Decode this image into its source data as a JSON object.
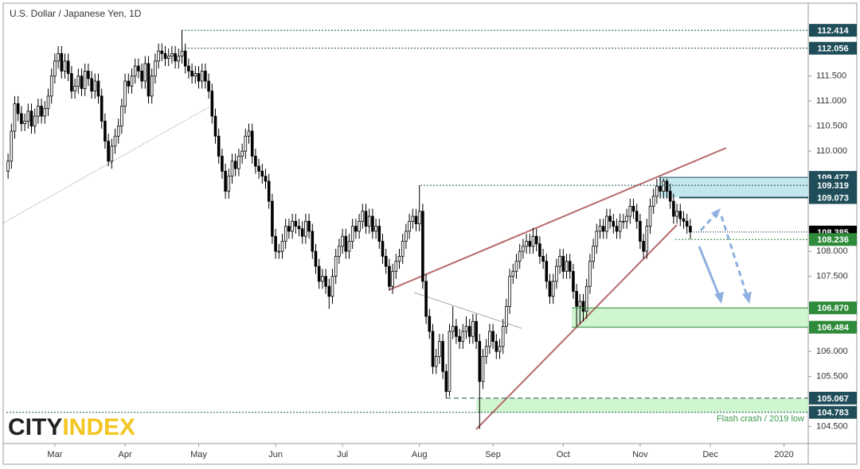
{
  "chart_data": {
    "type": "candlestick",
    "title": "U.S. Dollar / Japanese Yen, 1D",
    "categories": [
      null,
      null,
      null,
      null,
      null,
      null,
      null,
      null,
      null,
      null,
      null,
      null,
      null,
      null,
      "Mar",
      null,
      null,
      null,
      null,
      null,
      null,
      null,
      null,
      null,
      null,
      null,
      null,
      null,
      null,
      null,
      null,
      null,
      null,
      null,
      null,
      "Apr",
      null,
      null,
      null,
      null,
      null,
      null,
      null,
      null,
      null,
      null,
      null,
      null,
      null,
      null,
      null,
      null,
      null,
      null,
      null,
      null,
      null,
      "May",
      null,
      null,
      null,
      null,
      null,
      null,
      null,
      null,
      null,
      null,
      null,
      null,
      null,
      null,
      null,
      null,
      null,
      null,
      null,
      null,
      null,
      null,
      "Jun",
      null,
      null,
      null,
      null,
      null,
      null,
      null,
      null,
      null,
      null,
      null,
      null,
      null,
      null,
      null,
      null,
      null,
      null,
      null,
      "Jul",
      null,
      null,
      null,
      null,
      null,
      null,
      null,
      null,
      null,
      null,
      null,
      null,
      null,
      null,
      null,
      null,
      null,
      null,
      null,
      null,
      null,
      null,
      "Aug",
      null,
      null,
      null,
      null,
      null,
      null,
      null,
      null,
      null,
      null,
      null,
      null,
      null,
      null,
      null,
      null,
      null,
      null,
      null,
      null,
      null,
      "Sep",
      null,
      null,
      null,
      null,
      null,
      null,
      null,
      null,
      null,
      null,
      null,
      null,
      null,
      null,
      null,
      null,
      null,
      null,
      null,
      null,
      "Oct",
      null,
      null,
      null,
      null,
      null,
      null,
      null,
      null,
      null,
      null,
      null,
      null,
      null,
      null,
      null,
      null,
      null,
      null,
      null,
      null,
      null,
      null,
      "Nov",
      null,
      null,
      null,
      null,
      null,
      null,
      null,
      null,
      null,
      null,
      null,
      null,
      null,
      null,
      null,
      null,
      null,
      null,
      null,
      null,
      "Dec",
      null,
      null,
      null,
      null,
      null,
      null,
      null,
      null,
      null,
      null,
      null,
      null,
      null,
      null,
      null,
      null,
      null,
      null,
      null,
      null,
      null,
      "2020",
      null,
      null,
      null,
      null,
      null,
      null,
      null
    ],
    "open": [
      109.6,
      109.8,
      110.4,
      110.95,
      110.75,
      110.55,
      110.6,
      110.8,
      110.5,
      110.7,
      110.9,
      110.7,
      110.85,
      111.1,
      111.5,
      111.8,
      111.95,
      111.6,
      111.8,
      111.55,
      111.2,
      111.3,
      111.5,
      111.25,
      111.6,
      111.45,
      111.2,
      111.4,
      111.1,
      110.6,
      110.2,
      109.8,
      110.1,
      110.3,
      110.5,
      110.9,
      111.4,
      111.3,
      111.5,
      111.7,
      111.6,
      111.4,
      111.75,
      111.1,
      111.5,
      111.8,
      112.0,
      111.95,
      111.85,
      111.9,
      111.95,
      111.8,
      111.9,
      112.0,
      111.7,
      111.6,
      111.5,
      111.55,
      111.4,
      111.6,
      111.4,
      111.2,
      110.7,
      110.3,
      109.9,
      109.6,
      109.2,
      109.5,
      109.8,
      109.65,
      109.9,
      110.0,
      110.3,
      110.4,
      109.9,
      109.7,
      109.6,
      109.5,
      109.4,
      109.0,
      108.3,
      108.0,
      108.0,
      108.2,
      108.5,
      108.4,
      108.6,
      108.5,
      108.45,
      108.3,
      108.6,
      108.4,
      108.0,
      107.7,
      107.4,
      107.5,
      107.3,
      107.1,
      107.5,
      107.9,
      108.1,
      108.3,
      108.0,
      108.2,
      108.5,
      108.4,
      108.6,
      108.8,
      108.5,
      108.7,
      108.4,
      108.5,
      108.2,
      107.9,
      107.7,
      107.3,
      107.6,
      107.8,
      107.9,
      108.2,
      108.4,
      108.6,
      108.7,
      108.55,
      108.8,
      107.4,
      106.7,
      106.4,
      105.7,
      105.9,
      106.2,
      105.6,
      105.2,
      106.4,
      106.5,
      106.3,
      106.2,
      106.4,
      106.5,
      106.3,
      106.6,
      106.2,
      105.4,
      105.9,
      106.1,
      106.4,
      106.2,
      106.0,
      106.1,
      106.5,
      106.9,
      107.5,
      107.6,
      107.8,
      108.0,
      108.1,
      108.2,
      108.1,
      108.3,
      108.15,
      107.9,
      107.8,
      107.4,
      107.1,
      107.4,
      107.7,
      107.9,
      107.6,
      107.8,
      107.6,
      107.2,
      106.9,
      107.0,
      106.8,
      107.3,
      107.8,
      108.1,
      108.4,
      108.5,
      108.4,
      108.7,
      108.6,
      108.5,
      108.4,
      108.6,
      108.6,
      108.7,
      108.9,
      108.8,
      108.6,
      108.2,
      108.0,
      108.5,
      108.9,
      109.1,
      109.3,
      109.2,
      109.4,
      109.2,
      109.0,
      108.7,
      108.8,
      108.65,
      108.6,
      108.5,
      null,
      null,
      null,
      null,
      null,
      null,
      null,
      null,
      null,
      null,
      null,
      null,
      null,
      null,
      null,
      null,
      null,
      null,
      null,
      null,
      null,
      null,
      null,
      null,
      null,
      null,
      null,
      null,
      null,
      null,
      null,
      null,
      null,
      null,
      null
    ],
    "high": [
      109.95,
      110.55,
      111.1,
      111.1,
      110.9,
      110.75,
      110.95,
      110.95,
      110.85,
      111.05,
      111.05,
      111.0,
      111.25,
      111.65,
      111.95,
      112.1,
      112.1,
      111.95,
      111.95,
      111.7,
      111.45,
      111.65,
      111.65,
      111.75,
      111.75,
      111.6,
      111.55,
      111.55,
      111.25,
      110.75,
      110.35,
      110.25,
      110.45,
      110.65,
      111.05,
      111.55,
      111.55,
      111.65,
      111.85,
      111.85,
      111.75,
      111.9,
      111.9,
      111.65,
      111.95,
      112.15,
      112.15,
      112.1,
      112.05,
      112.1,
      112.1,
      112.05,
      112.41,
      112.15,
      111.85,
      111.75,
      111.7,
      111.7,
      111.75,
      111.75,
      111.55,
      111.35,
      110.85,
      110.45,
      110.05,
      109.75,
      109.65,
      109.95,
      109.95,
      110.05,
      110.15,
      110.45,
      110.55,
      110.55,
      110.05,
      109.85,
      109.75,
      109.65,
      109.55,
      109.15,
      108.45,
      108.15,
      108.35,
      108.65,
      108.65,
      108.75,
      108.75,
      108.65,
      108.6,
      108.75,
      108.75,
      108.55,
      108.15,
      107.85,
      107.65,
      107.65,
      107.45,
      107.65,
      108.05,
      108.25,
      108.45,
      108.45,
      108.35,
      108.65,
      108.65,
      108.75,
      108.95,
      108.95,
      108.85,
      108.85,
      108.65,
      108.65,
      108.35,
      108.05,
      107.85,
      107.75,
      107.95,
      108.05,
      108.35,
      108.55,
      108.75,
      108.85,
      108.85,
      109.32,
      108.95,
      107.55,
      106.85,
      106.55,
      106.05,
      106.35,
      106.35,
      105.75,
      106.55,
      106.9,
      106.65,
      106.45,
      106.55,
      106.7,
      106.65,
      106.75,
      106.75,
      106.35,
      106.05,
      106.25,
      106.55,
      106.55,
      106.35,
      106.25,
      106.65,
      107.05,
      107.65,
      107.75,
      107.95,
      108.15,
      108.25,
      108.35,
      108.35,
      108.47,
      108.45,
      108.3,
      108.05,
      107.95,
      107.55,
      107.55,
      107.85,
      108.05,
      108.05,
      107.95,
      107.95,
      107.75,
      107.35,
      107.15,
      107.15,
      107.45,
      107.95,
      108.25,
      108.55,
      108.65,
      108.65,
      108.85,
      108.85,
      108.75,
      108.65,
      108.75,
      108.75,
      108.85,
      109.05,
      109.05,
      108.95,
      108.75,
      108.35,
      108.65,
      109.05,
      109.25,
      109.45,
      109.48,
      109.45,
      109.45,
      109.35,
      109.15,
      108.95,
      108.95,
      108.8,
      108.75,
      108.65,
      null,
      null,
      null,
      null,
      null,
      null,
      null,
      null,
      null,
      null,
      null,
      null,
      null,
      null,
      null,
      null,
      null,
      null,
      null,
      null,
      null,
      null,
      null,
      null,
      null,
      null,
      null,
      null,
      null,
      null,
      null,
      null,
      null,
      null,
      null
    ],
    "low": [
      109.45,
      109.65,
      110.25,
      110.6,
      110.4,
      110.4,
      110.45,
      110.35,
      110.35,
      110.55,
      110.55,
      110.55,
      110.7,
      110.95,
      111.35,
      111.65,
      111.45,
      111.45,
      111.4,
      111.05,
      111.05,
      111.15,
      111.1,
      111.1,
      111.3,
      111.05,
      111.05,
      110.95,
      110.45,
      110.05,
      109.7,
      109.65,
      109.95,
      110.15,
      110.35,
      110.75,
      111.15,
      111.15,
      111.35,
      111.45,
      111.25,
      111.25,
      110.95,
      110.95,
      111.35,
      111.65,
      111.8,
      111.7,
      111.7,
      111.75,
      111.65,
      111.65,
      111.75,
      111.55,
      111.45,
      111.35,
      111.35,
      111.25,
      111.25,
      111.25,
      111.05,
      110.55,
      110.15,
      109.75,
      109.45,
      109.05,
      109.05,
      109.35,
      109.5,
      109.5,
      109.75,
      109.85,
      110.15,
      109.75,
      109.55,
      109.45,
      109.35,
      109.25,
      108.85,
      108.15,
      107.85,
      107.85,
      107.85,
      108.05,
      108.25,
      108.25,
      108.35,
      108.3,
      108.15,
      108.15,
      108.25,
      107.85,
      107.55,
      107.25,
      107.25,
      107.15,
      106.85,
      106.95,
      107.35,
      107.75,
      107.95,
      107.85,
      107.85,
      108.05,
      108.25,
      108.25,
      108.45,
      108.35,
      108.35,
      108.25,
      108.25,
      108.05,
      107.75,
      107.55,
      107.22,
      107.15,
      107.45,
      107.65,
      107.75,
      108.05,
      108.25,
      108.45,
      108.4,
      108.4,
      107.25,
      106.55,
      106.25,
      105.55,
      105.55,
      105.75,
      105.45,
      105.07,
      105.1,
      106.25,
      106.15,
      106.05,
      106.05,
      106.25,
      106.15,
      106.15,
      106.05,
      104.45,
      105.25,
      105.75,
      105.95,
      106.05,
      105.85,
      105.85,
      105.95,
      106.35,
      106.75,
      107.35,
      107.45,
      107.65,
      107.85,
      107.95,
      107.95,
      107.95,
      108.0,
      107.75,
      107.65,
      107.25,
      106.95,
      106.95,
      107.25,
      107.55,
      107.45,
      107.45,
      107.45,
      107.05,
      106.48,
      106.55,
      106.6,
      106.65,
      107.15,
      107.65,
      107.95,
      108.25,
      108.25,
      108.25,
      108.45,
      108.35,
      108.25,
      108.25,
      108.45,
      108.45,
      108.55,
      108.65,
      108.45,
      108.05,
      107.85,
      107.85,
      108.35,
      108.75,
      108.95,
      109.05,
      109.05,
      109.05,
      108.85,
      108.55,
      108.55,
      108.5,
      108.45,
      108.35,
      108.24,
      null,
      null,
      null,
      null,
      null,
      null,
      null,
      null,
      null,
      null,
      null,
      null,
      null,
      null,
      null,
      null,
      null,
      null,
      null,
      null,
      null,
      null,
      null,
      null,
      null,
      null,
      null,
      null,
      null,
      null,
      null,
      null,
      null,
      null,
      null
    ],
    "close": [
      109.8,
      110.4,
      110.95,
      110.75,
      110.55,
      110.6,
      110.8,
      110.5,
      110.7,
      110.9,
      110.7,
      110.85,
      111.1,
      111.5,
      111.8,
      111.95,
      111.6,
      111.8,
      111.55,
      111.2,
      111.3,
      111.5,
      111.25,
      111.6,
      111.45,
      111.2,
      111.4,
      111.1,
      110.6,
      110.2,
      109.8,
      110.1,
      110.3,
      110.5,
      110.9,
      111.4,
      111.3,
      111.5,
      111.7,
      111.6,
      111.4,
      111.75,
      111.1,
      111.5,
      111.8,
      112.0,
      111.95,
      111.85,
      111.9,
      111.95,
      111.8,
      111.9,
      112.0,
      111.7,
      111.6,
      111.5,
      111.55,
      111.4,
      111.6,
      111.4,
      111.2,
      110.7,
      110.3,
      109.9,
      109.6,
      109.2,
      109.5,
      109.8,
      109.65,
      109.9,
      110.0,
      110.3,
      110.4,
      109.9,
      109.7,
      109.6,
      109.5,
      109.4,
      109.0,
      108.3,
      108.0,
      108.0,
      108.2,
      108.5,
      108.4,
      108.6,
      108.5,
      108.45,
      108.3,
      108.6,
      108.4,
      108.0,
      107.7,
      107.4,
      107.5,
      107.3,
      107.1,
      107.5,
      107.9,
      108.1,
      108.3,
      108.0,
      108.2,
      108.5,
      108.4,
      108.6,
      108.8,
      108.5,
      108.7,
      108.4,
      108.5,
      108.2,
      107.9,
      107.7,
      107.3,
      107.6,
      107.8,
      107.9,
      108.2,
      108.4,
      108.6,
      108.7,
      108.55,
      108.8,
      107.4,
      106.7,
      106.4,
      105.7,
      105.9,
      106.2,
      105.6,
      105.2,
      106.4,
      106.5,
      106.3,
      106.2,
      106.4,
      106.5,
      106.3,
      106.6,
      106.2,
      105.4,
      105.9,
      106.1,
      106.4,
      106.2,
      106.0,
      106.1,
      106.5,
      106.9,
      107.5,
      107.6,
      107.8,
      108.0,
      108.1,
      108.2,
      108.1,
      108.3,
      108.15,
      107.9,
      107.8,
      107.4,
      107.1,
      107.4,
      107.7,
      107.9,
      107.6,
      107.8,
      107.6,
      107.2,
      106.9,
      107.0,
      106.8,
      107.3,
      107.8,
      108.1,
      108.4,
      108.5,
      108.4,
      108.7,
      108.6,
      108.5,
      108.4,
      108.6,
      108.6,
      108.7,
      108.9,
      108.8,
      108.6,
      108.2,
      108.0,
      108.5,
      108.9,
      109.1,
      109.3,
      109.2,
      109.4,
      109.2,
      109.0,
      108.7,
      108.8,
      108.65,
      108.6,
      108.5,
      108.385,
      null,
      null,
      null,
      null,
      null,
      null,
      null,
      null,
      null,
      null,
      null,
      null,
      null,
      null,
      null,
      null,
      null,
      null,
      null,
      null,
      null,
      null,
      null,
      null,
      null,
      null,
      null,
      null,
      null,
      null,
      null,
      null,
      null,
      null,
      null
    ],
    "up_color": "#ffffff",
    "down_color": "#000000",
    "ylim": [
      104.16,
      112.94
    ],
    "yticks": [
      {
        "value": 111.5,
        "label": "111.500"
      },
      {
        "value": 111.0,
        "label": "111.000"
      },
      {
        "value": 110.5,
        "label": "110.500"
      },
      {
        "value": 110.0,
        "label": "110.000"
      },
      {
        "value": 108.0,
        "label": "108.000"
      },
      {
        "value": 107.5,
        "label": "107.500"
      },
      {
        "value": 106.0,
        "label": "106.000"
      },
      {
        "value": 105.5,
        "label": "105.500"
      },
      {
        "value": 104.5,
        "label": "104.500"
      }
    ],
    "levels": [
      {
        "value": 112.414,
        "label": "112.414",
        "color": "#1f4e5a"
      },
      {
        "value": 112.056,
        "label": "112.056",
        "color": "#1f4e5a"
      },
      {
        "value": 109.477,
        "label": "109.477",
        "color": "#1f4e5a"
      },
      {
        "value": 109.319,
        "label": "109.319",
        "color": "#1f4e5a"
      },
      {
        "value": 109.073,
        "label": "109.073",
        "color": "#1f4e5a"
      },
      {
        "value": 108.385,
        "label": "108.385",
        "color": "#000000"
      },
      {
        "value": 108.236,
        "label": "108.236",
        "color": "#2e8b3a"
      },
      {
        "value": 106.87,
        "label": "106.870",
        "color": "#2e8b3a"
      },
      {
        "value": 106.484,
        "label": "106.484",
        "color": "#2e8b3a"
      },
      {
        "value": 105.067,
        "label": "105.067",
        "color": "#1f4e5a"
      },
      {
        "value": 104.783,
        "label": "104.783",
        "color": "#1f4e5a"
      }
    ],
    "annotation": "Flash crash / 2019 low",
    "logo": [
      "CITY",
      "INDEX"
    ]
  }
}
